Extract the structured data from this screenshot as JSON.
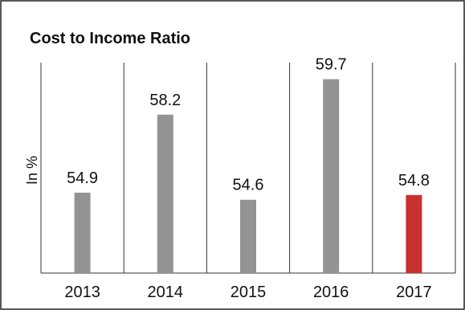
{
  "chart_data": {
    "type": "bar",
    "title": "Cost to Income Ratio",
    "xlabel": "",
    "ylabel": "In %",
    "categories": [
      "2013",
      "2014",
      "2015",
      "2016",
      "2017"
    ],
    "values": [
      54.9,
      58.2,
      54.6,
      59.7,
      54.8
    ],
    "value_labels": [
      "54.9",
      "58.2",
      "54.6",
      "59.7",
      "54.8"
    ],
    "ylim": [
      51.5,
      60.4
    ],
    "colors": [
      "#939393",
      "#939393",
      "#939393",
      "#939393",
      "#c9312e"
    ],
    "grid": false,
    "legend": "none"
  }
}
